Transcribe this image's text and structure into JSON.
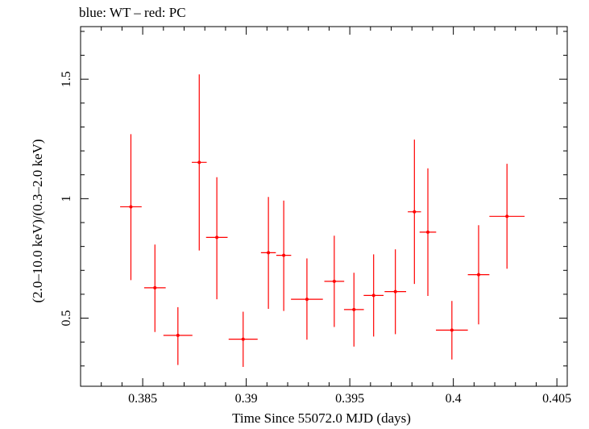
{
  "chart_data": {
    "type": "scatter",
    "title": "blue: WT – red: PC",
    "xlabel": "Time Since 55072.0 MJD (days)",
    "ylabel": "(2.0–10.0 keV)/(0.3–2.0 keV)",
    "xlim": [
      0.382,
      0.4055
    ],
    "ylim": [
      0.215,
      1.72
    ],
    "xticks": [
      0.385,
      0.39,
      0.395,
      0.4,
      0.405
    ],
    "xtick_labels": [
      "0.385",
      "0.39",
      "0.395",
      "0.4",
      "0.405"
    ],
    "yticks": [
      0.5,
      1,
      1.5
    ],
    "ytick_labels": [
      "0.5",
      "1",
      "1.5"
    ],
    "grid": false,
    "series": [
      {
        "color": "#ff0000",
        "points": [
          {
            "x": 0.38443,
            "y": 0.966,
            "xerr": 0.00052,
            "ylo": 0.659,
            "yhi": 1.27
          },
          {
            "x": 0.38559,
            "y": 0.627,
            "xerr": 0.00052,
            "ylo": 0.442,
            "yhi": 0.808
          },
          {
            "x": 0.3867,
            "y": 0.428,
            "xerr": 0.0007,
            "ylo": 0.304,
            "yhi": 0.546
          },
          {
            "x": 0.38773,
            "y": 1.152,
            "xerr": 0.00036,
            "ylo": 0.783,
            "yhi": 1.52
          },
          {
            "x": 0.38858,
            "y": 0.838,
            "xerr": 0.00052,
            "ylo": 0.579,
            "yhi": 1.09
          },
          {
            "x": 0.38985,
            "y": 0.412,
            "xerr": 0.0007,
            "ylo": 0.296,
            "yhi": 0.527
          },
          {
            "x": 0.39107,
            "y": 0.774,
            "xerr": 0.00036,
            "ylo": 0.539,
            "yhi": 1.007
          },
          {
            "x": 0.39181,
            "y": 0.763,
            "xerr": 0.00036,
            "ylo": 0.53,
            "yhi": 0.992
          },
          {
            "x": 0.39293,
            "y": 0.579,
            "xerr": 0.00077,
            "ylo": 0.41,
            "yhi": 0.75
          },
          {
            "x": 0.39425,
            "y": 0.654,
            "xerr": 0.00048,
            "ylo": 0.463,
            "yhi": 0.845
          },
          {
            "x": 0.3952,
            "y": 0.536,
            "xerr": 0.00048,
            "ylo": 0.381,
            "yhi": 0.69
          },
          {
            "x": 0.39615,
            "y": 0.595,
            "xerr": 0.00048,
            "ylo": 0.423,
            "yhi": 0.767
          },
          {
            "x": 0.3972,
            "y": 0.611,
            "xerr": 0.00052,
            "ylo": 0.433,
            "yhi": 0.788
          },
          {
            "x": 0.39812,
            "y": 0.945,
            "xerr": 0.00032,
            "ylo": 0.643,
            "yhi": 1.247
          },
          {
            "x": 0.39877,
            "y": 0.86,
            "xerr": 0.0004,
            "ylo": 0.593,
            "yhi": 1.127
          },
          {
            "x": 0.39993,
            "y": 0.45,
            "xerr": 0.00077,
            "ylo": 0.327,
            "yhi": 0.572
          },
          {
            "x": 0.40122,
            "y": 0.682,
            "xerr": 0.00052,
            "ylo": 0.474,
            "yhi": 0.889
          },
          {
            "x": 0.40259,
            "y": 0.926,
            "xerr": 0.00085,
            "ylo": 0.707,
            "yhi": 1.146
          }
        ]
      }
    ]
  }
}
